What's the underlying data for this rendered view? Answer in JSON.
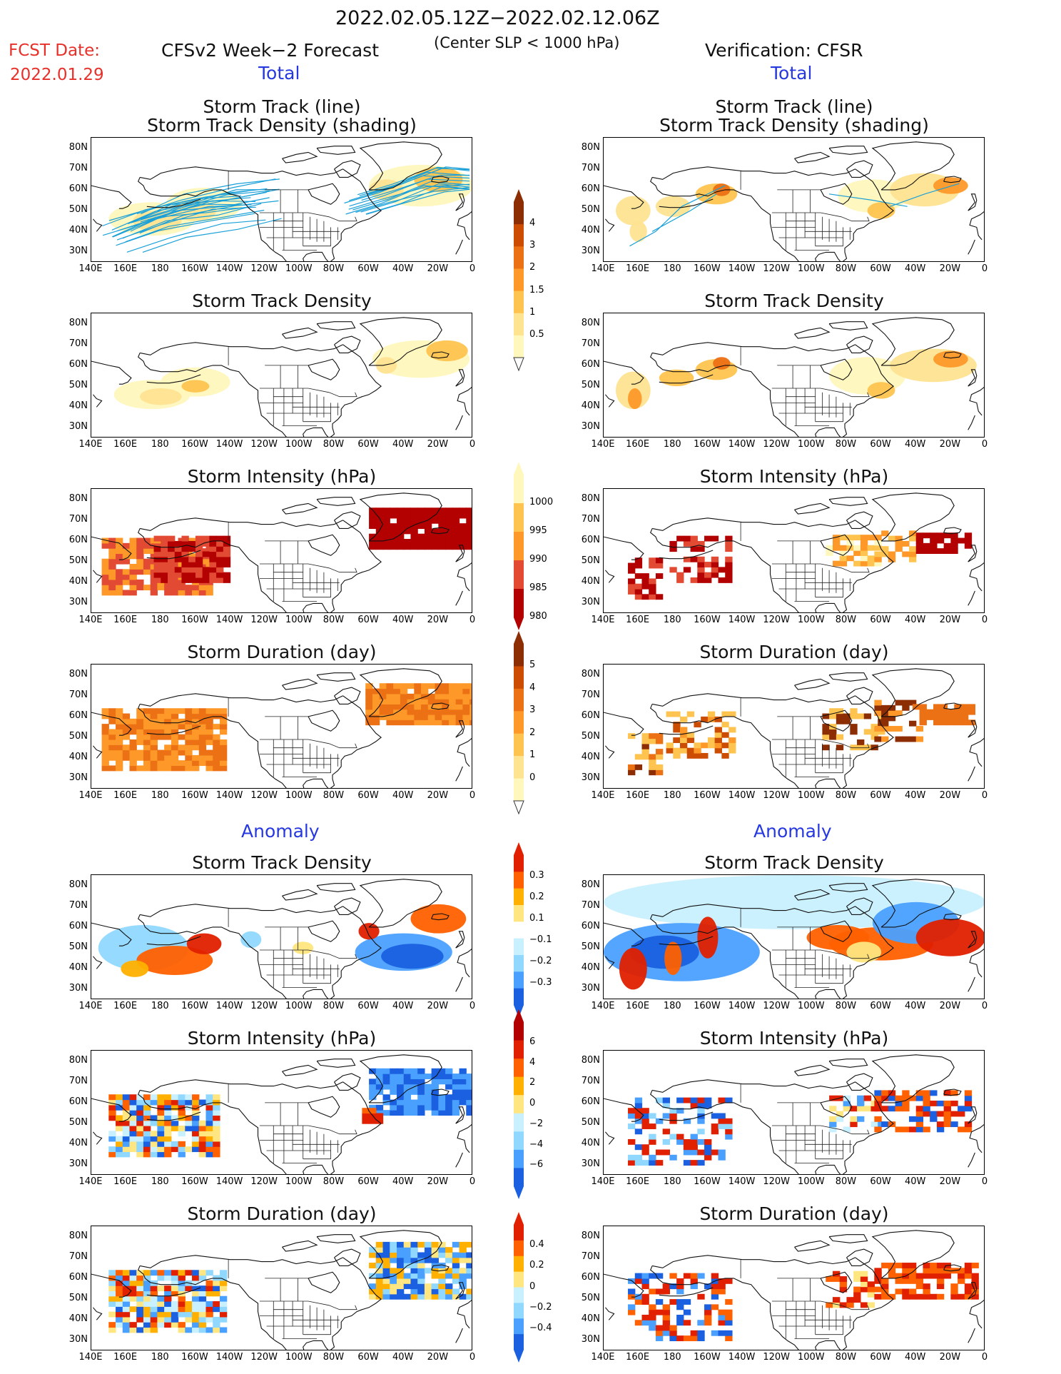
{
  "header": {
    "date_range": "2022.02.05.12Z−2022.02.12.06Z",
    "fcst_label": "FCST Date:",
    "fcst_date": "2022.01.29",
    "left_title": "CFSv2 Week−2 Forecast",
    "criteria": "(Center SLP < 1000 hPa)",
    "right_title": "Verification: CFSR"
  },
  "sections": {
    "total": "Total",
    "anomaly": "Anomaly"
  },
  "panel_titles": {
    "track_line": "Storm Track (line)",
    "track_density_shading": "Storm Track Density (shading)",
    "track_density": "Storm Track Density",
    "intensity": "Storm Intensity (hPa)",
    "duration": "Storm Duration (day)"
  },
  "axes": {
    "lat_labels": [
      "80N",
      "70N",
      "60N",
      "50N",
      "40N",
      "30N"
    ],
    "lon_labels": [
      "140E",
      "160E",
      "180",
      "160W",
      "140W",
      "120W",
      "100W",
      "80W",
      "60W",
      "40W",
      "20W",
      "0"
    ]
  },
  "colorbars": {
    "total_density": [
      "4",
      "3",
      "2",
      "1.5",
      "1",
      "0.5"
    ],
    "total_intensity": [
      "1000",
      "995",
      "990",
      "985",
      "980"
    ],
    "total_duration": [
      "5",
      "4",
      "3",
      "2",
      "1",
      "0"
    ],
    "anom_density": [
      "0.3",
      "0.2",
      "0.1",
      "−0.1",
      "−0.2",
      "−0.3"
    ],
    "anom_intensity": [
      "6",
      "4",
      "2",
      "0",
      "−2",
      "−4",
      "−6"
    ],
    "anom_duration": [
      "0.4",
      "0.2",
      "0",
      "−0.2",
      "−0.4"
    ]
  },
  "colors": {
    "seq": [
      "#fff7bc",
      "#fee391",
      "#fec44f",
      "#fe9929",
      "#ec7014",
      "#cc4c02",
      "#8c2d04"
    ],
    "intensity": [
      "#fff7bc",
      "#fec44f",
      "#fe9929",
      "#e34a33",
      "#b30000"
    ],
    "div_pos": [
      "#ffe680",
      "#ffb000",
      "#ff6000",
      "#e02000"
    ],
    "div_neg": [
      "#c8f0ff",
      "#90d8ff",
      "#4aa0ff",
      "#1a60e0"
    ],
    "track_line": "#1aa0d8"
  }
}
